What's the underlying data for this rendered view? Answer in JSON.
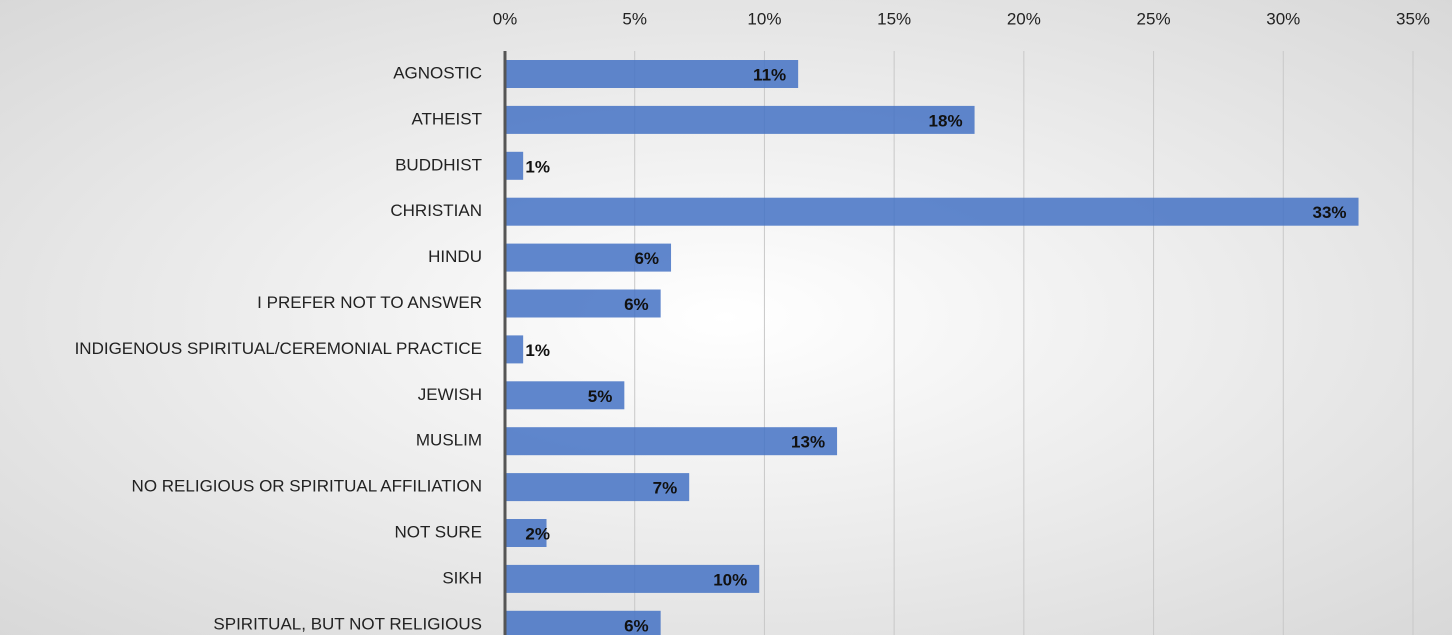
{
  "chart_data": {
    "type": "hbar",
    "categories": [
      "AGNOSTIC",
      "ATHEIST",
      "BUDDHIST",
      "CHRISTIAN",
      "HINDU",
      "I PREFER NOT TO ANSWER",
      "INDIGENOUS SPIRITUAL/CEREMONIAL PRACTICE",
      "JEWISH",
      "MUSLIM",
      "NO RELIGIOUS OR SPIRITUAL AFFILIATION",
      "NOT SURE",
      "SIKH",
      "SPIRITUAL, BUT NOT RELIGIOUS"
    ],
    "values": [
      11.3,
      18.1,
      0.7,
      32.9,
      6.4,
      6.0,
      0.7,
      4.6,
      12.8,
      7.1,
      1.6,
      9.8,
      6.0
    ],
    "value_labels": [
      "11%",
      "18%",
      "1%",
      "33%",
      "6%",
      "6%",
      "1%",
      "5%",
      "13%",
      "7%",
      "2%",
      "10%",
      "6%"
    ],
    "color": "#4472c4",
    "xlim": [
      0,
      35
    ],
    "xticks": [
      {
        "value": 0,
        "label": "0%"
      },
      {
        "value": 5,
        "label": "5%"
      },
      {
        "value": 10,
        "label": "10%"
      },
      {
        "value": 15,
        "label": "15%"
      },
      {
        "value": 20,
        "label": "20%"
      },
      {
        "value": 25,
        "label": "25%"
      },
      {
        "value": 30,
        "label": "30%"
      },
      {
        "value": 35,
        "label": "35%"
      }
    ],
    "grid": true
  }
}
